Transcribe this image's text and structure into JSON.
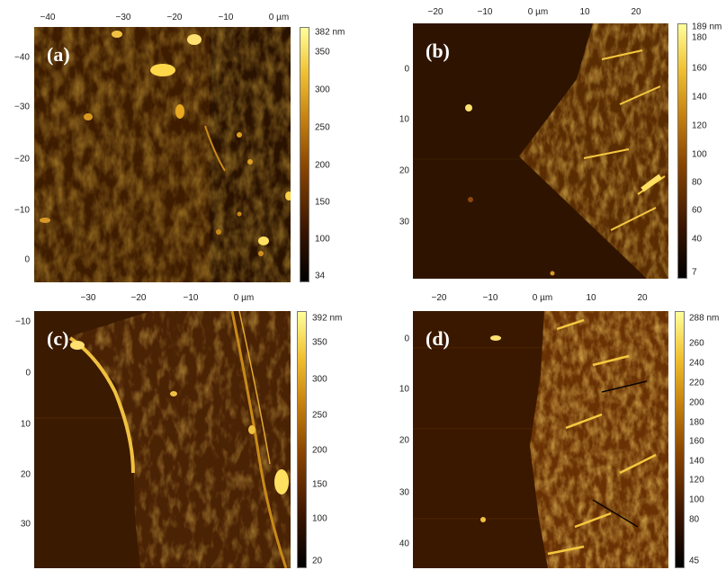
{
  "panels": [
    {
      "letter": "(a)",
      "x_ticks": [
        "−40",
        "−30",
        "−20",
        "−10",
        "0 µm"
      ],
      "y_ticks": [
        "−40",
        "−30",
        "−20",
        "−10",
        "0"
      ],
      "colorbar_ticks": [
        "382 nm",
        "350",
        "300",
        "250",
        "200",
        "150",
        "100",
        "34"
      ]
    },
    {
      "letter": "(b)",
      "x_ticks": [
        "−20",
        "−10",
        "0 µm",
        "10",
        "20"
      ],
      "y_ticks": [
        "0",
        "10",
        "20",
        "30"
      ],
      "colorbar_ticks": [
        "189 nm",
        "180",
        "160",
        "140",
        "120",
        "100",
        "80",
        "60",
        "40",
        "7"
      ]
    },
    {
      "letter": "(c)",
      "x_ticks": [
        "−30",
        "−20",
        "−10",
        "0 µm"
      ],
      "y_ticks": [
        "−10",
        "0",
        "10",
        "20",
        "30"
      ],
      "colorbar_ticks": [
        "392 nm",
        "350",
        "300",
        "250",
        "200",
        "150",
        "100",
        "20"
      ]
    },
    {
      "letter": "(d)",
      "x_ticks": [
        "−20",
        "−10",
        "0 µm",
        "10",
        "20"
      ],
      "y_ticks": [
        "0",
        "10",
        "20",
        "30",
        "40"
      ],
      "colorbar_ticks": [
        "288 nm",
        "260",
        "240",
        "220",
        "200",
        "180",
        "160",
        "140",
        "120",
        "100",
        "80",
        "45"
      ]
    }
  ]
}
